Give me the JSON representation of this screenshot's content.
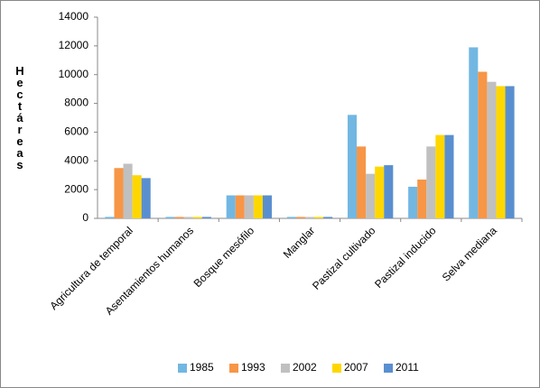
{
  "chart_data": {
    "type": "bar",
    "y_label": "Hectáreas",
    "categories": [
      "Agricultura de temporal",
      "Asentamientos humanos",
      "Bosque mesófilo",
      "Manglar",
      "Pastizal cultivado",
      "Pastizal inducido",
      "Selva mediana"
    ],
    "series": [
      {
        "name": "1985",
        "color": "#72b7e2",
        "values": [
          100,
          100,
          1600,
          100,
          7200,
          2200,
          11900
        ]
      },
      {
        "name": "1993",
        "color": "#f79646",
        "values": [
          3500,
          100,
          1600,
          100,
          5000,
          2700,
          10200
        ]
      },
      {
        "name": "2002",
        "color": "#c0c0c0",
        "values": [
          3800,
          100,
          1600,
          100,
          3100,
          5000,
          9500
        ]
      },
      {
        "name": "2007",
        "color": "#ffd700",
        "values": [
          3000,
          100,
          1600,
          100,
          3600,
          5800,
          9200
        ]
      },
      {
        "name": "2011",
        "color": "#5a8fcf",
        "values": [
          2800,
          100,
          1600,
          100,
          3700,
          5800,
          9200
        ]
      }
    ],
    "ylim": [
      0,
      14000
    ],
    "yticks": [
      0,
      2000,
      4000,
      6000,
      8000,
      10000,
      12000,
      14000
    ],
    "legend": "bottom"
  }
}
